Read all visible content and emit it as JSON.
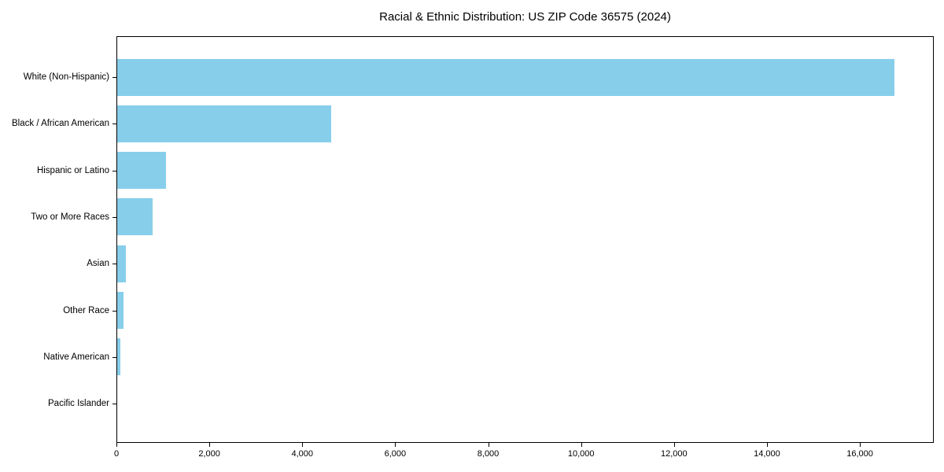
{
  "chart_data": {
    "type": "bar",
    "orientation": "horizontal",
    "title": "Racial & Ethnic Distribution: US ZIP Code 36575 (2024)",
    "categories": [
      "White (Non-Hispanic)",
      "Black / African American",
      "Hispanic or Latino",
      "Two or More Races",
      "Asian",
      "Other Race",
      "Native American",
      "Pacific Islander"
    ],
    "values": [
      16730,
      4600,
      1050,
      760,
      190,
      130,
      60,
      0
    ],
    "xlabel": "",
    "ylabel": "",
    "xlim": [
      0,
      17590
    ],
    "x_ticks": [
      0,
      2000,
      4000,
      6000,
      8000,
      10000,
      12000,
      14000,
      16000
    ],
    "x_tick_labels": [
      "0",
      "2,000",
      "4,000",
      "6,000",
      "8,000",
      "10,000",
      "12,000",
      "14,000",
      "16,000"
    ],
    "bar_color": "#87CEEB",
    "background_color": "#ffffff",
    "axis_color": "#000000",
    "grid": false,
    "legend": null,
    "value_labels_shown": false
  }
}
